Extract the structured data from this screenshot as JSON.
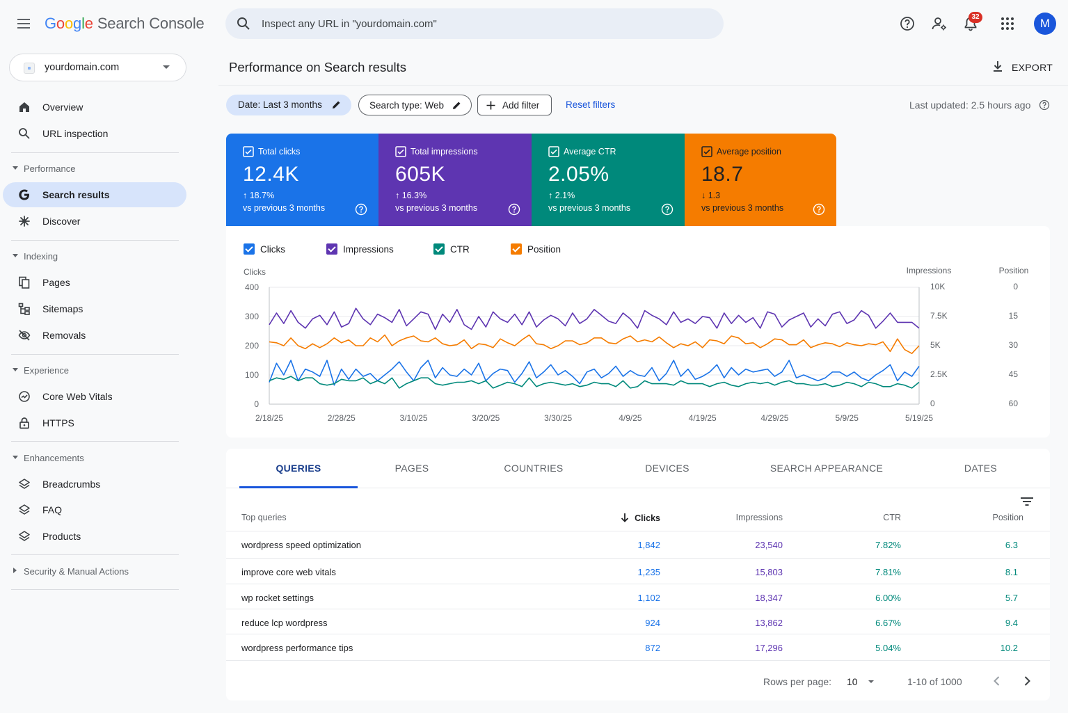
{
  "header": {
    "logo_letters": [
      "G",
      "o",
      "o",
      "g",
      "l",
      "e"
    ],
    "product": "Search Console",
    "search_placeholder": "Inspect any URL in \"yourdomain.com\"",
    "notification_count": "32",
    "avatar_letter": "M",
    "icons": [
      "menu-icon",
      "search-icon",
      "help-icon",
      "manage-users-icon",
      "bell-icon",
      "apps-icon"
    ]
  },
  "sidebar": {
    "property": "yourdomain.com",
    "overview": "Overview",
    "url_inspection": "URL inspection",
    "sections": {
      "performance": "Performance",
      "indexing": "Indexing",
      "experience": "Experience",
      "enhancements": "Enhancements",
      "security": "Security & Manual Actions"
    },
    "items": {
      "search_results": "Search results",
      "discover": "Discover",
      "pages": "Pages",
      "sitemaps": "Sitemaps",
      "removals": "Removals",
      "core_web_vitals": "Core Web Vitals",
      "https": "HTTPS",
      "breadcrumbs": "Breadcrumbs",
      "faq": "FAQ",
      "products": "Products"
    }
  },
  "main": {
    "title": "Performance on Search results",
    "export_label": "EXPORT",
    "filters": {
      "date": "Date: Last 3 months",
      "search_type": "Search type: Web",
      "add_filter": "Add filter",
      "reset": "Reset filters",
      "last_updated": "Last updated: 2.5 hours ago"
    },
    "cards": [
      {
        "label": "Total clicks",
        "value": "12.4K",
        "delta": "18.7%",
        "direction": "up",
        "compare": "vs previous 3 months",
        "color": "#1a73e8"
      },
      {
        "label": "Total impressions",
        "value": "605K",
        "delta": "16.3%",
        "direction": "up",
        "compare": "vs previous 3 months",
        "color": "#5e35b1"
      },
      {
        "label": "Average CTR",
        "value": "2.05%",
        "delta": "2.1%",
        "direction": "up",
        "compare": "vs previous 3 months",
        "color": "#00897b"
      },
      {
        "label": "Average position",
        "value": "18.7",
        "delta": "1.3",
        "direction": "down",
        "compare": "vs previous 3 months",
        "color": "#f57c00"
      }
    ],
    "legend": {
      "clicks": "Clicks",
      "impressions": "Impressions",
      "ctr": "CTR",
      "position": "Position"
    }
  },
  "chart_data": {
    "type": "line",
    "left_axis_title": "Clicks",
    "right_axis_titles": [
      "Impressions",
      "Position"
    ],
    "left_ticks": [
      "400",
      "300",
      "200",
      "100",
      "0"
    ],
    "impr_ticks": [
      "10K",
      "7.5K",
      "5K",
      "2.5K",
      "0"
    ],
    "pos_ticks": [
      "0",
      "15",
      "30",
      "45",
      "60"
    ],
    "x_ticks": [
      "2/18/25",
      "2/28/25",
      "3/10/25",
      "3/20/25",
      "3/30/25",
      "4/9/25",
      "4/19/25",
      "4/29/25",
      "5/9/25",
      "5/19/25"
    ],
    "ylim": [
      0,
      400
    ],
    "grid": true,
    "series": [
      {
        "name": "Impressions",
        "color": "#5e35b1",
        "axis": "impressions",
        "ylim": [
          0,
          10000
        ],
        "values": [
          6800,
          7800,
          6900,
          8000,
          7000,
          6500,
          7300,
          7600,
          6800,
          7900,
          6600,
          6900,
          8200,
          7300,
          6800,
          7700,
          7400,
          7000,
          8100,
          6700,
          7300,
          7900,
          7700,
          6400,
          7700,
          7000,
          8100,
          6800,
          6400,
          7500,
          6600,
          7900,
          7300,
          7000,
          7700,
          6800,
          7900,
          6600,
          7200,
          7600,
          7300,
          6700,
          7800,
          6900,
          7300,
          8100,
          7600,
          7100,
          6900,
          7800,
          7300,
          6500,
          8000,
          7600,
          7300,
          6800,
          7900,
          7000,
          7300,
          6900,
          7500,
          7400,
          6500,
          7800,
          6900,
          7600,
          7000,
          7400,
          6500,
          7900,
          7700,
          6600,
          7200,
          7500,
          7800,
          6600,
          7300,
          6700,
          7700,
          7900,
          6900,
          7200,
          8000,
          7600,
          6500,
          7100,
          7800,
          7000,
          7000,
          7000,
          6500
        ]
      },
      {
        "name": "Position",
        "color": "#f57c00",
        "axis": "position",
        "ylim": [
          60,
          0
        ],
        "values": [
          28,
          28.5,
          30,
          26,
          30,
          31.5,
          29,
          31,
          29,
          26,
          28.5,
          27,
          30,
          30,
          26,
          28,
          24.5,
          30,
          27.5,
          26,
          25,
          27.5,
          28,
          26,
          29,
          30,
          29.5,
          27,
          31.5,
          29,
          29.5,
          31,
          26.5,
          28.5,
          30,
          27,
          24.5,
          29,
          29.5,
          31.5,
          30,
          27.5,
          27.5,
          29.5,
          28.5,
          26,
          26,
          28.5,
          29,
          26.5,
          25,
          28,
          27,
          28,
          25.5,
          28.5,
          31,
          29,
          30,
          28,
          31,
          27,
          27.5,
          29,
          25,
          26,
          29,
          28.5,
          31,
          29,
          26.5,
          27,
          29.5,
          29.5,
          27,
          31,
          29.5,
          28.5,
          29,
          30.5,
          28.5,
          29.5,
          30,
          29,
          29.5,
          28,
          33,
          26.5,
          32,
          34,
          30
        ]
      },
      {
        "name": "Clicks",
        "color": "#1a73e8",
        "axis": "clicks",
        "ylim": [
          0,
          400
        ],
        "values": [
          75,
          140,
          100,
          150,
          80,
          120,
          110,
          95,
          150,
          65,
          120,
          85,
          120,
          95,
          105,
          80,
          100,
          120,
          145,
          110,
          80,
          125,
          150,
          90,
          125,
          100,
          95,
          120,
          100,
          140,
          80,
          105,
          120,
          115,
          75,
          105,
          145,
          90,
          110,
          135,
          100,
          115,
          95,
          70,
          110,
          120,
          90,
          105,
          130,
          95,
          115,
          100,
          95,
          125,
          80,
          105,
          150,
          95,
          120,
          85,
          95,
          110,
          135,
          90,
          125,
          100,
          120,
          110,
          115,
          120,
          95,
          110,
          150,
          90,
          100,
          90,
          80,
          90,
          110,
          110,
          95,
          110,
          90,
          80,
          100,
          115,
          135,
          80,
          110,
          95,
          130
        ]
      },
      {
        "name": "CTR",
        "color": "#00897b",
        "values": [
          80,
          90,
          85,
          95,
          80,
          90,
          90,
          70,
          65,
          70,
          85,
          80,
          80,
          90,
          70,
          80,
          70,
          90,
          55,
          70,
          80,
          90,
          90,
          70,
          65,
          70,
          75,
          75,
          80,
          70,
          80,
          55,
          65,
          75,
          70,
          60,
          90,
          60,
          70,
          75,
          70,
          65,
          70,
          60,
          65,
          75,
          70,
          70,
          60,
          80,
          55,
          60,
          80,
          70,
          70,
          70,
          65,
          80,
          70,
          70,
          70,
          60,
          70,
          75,
          65,
          60,
          70,
          75,
          70,
          75,
          65,
          75,
          80,
          70,
          70,
          65,
          65,
          70,
          60,
          65,
          75,
          70,
          60,
          75,
          70,
          60,
          60,
          70,
          65,
          55,
          75
        ]
      }
    ]
  },
  "table": {
    "tabs": [
      "QUERIES",
      "PAGES",
      "COUNTRIES",
      "DEVICES",
      "SEARCH APPEARANCE",
      "DATES"
    ],
    "columns": {
      "query": "Top queries",
      "clicks": "Clicks",
      "impressions": "Impressions",
      "ctr": "CTR",
      "position": "Position"
    },
    "rows": [
      {
        "query": "wordpress speed optimization",
        "clicks": "1,842",
        "impressions": "23,540",
        "ctr": "7.82%",
        "position": "6.3"
      },
      {
        "query": "improve core web vitals",
        "clicks": "1,235",
        "impressions": "15,803",
        "ctr": "7.81%",
        "position": "8.1"
      },
      {
        "query": "wp rocket settings",
        "clicks": "1,102",
        "impressions": "18,347",
        "ctr": "6.00%",
        "position": "5.7"
      },
      {
        "query": "reduce lcp wordpress",
        "clicks": "924",
        "impressions": "13,862",
        "ctr": "6.67%",
        "position": "9.4"
      },
      {
        "query": "wordpress performance tips",
        "clicks": "872",
        "impressions": "17,296",
        "ctr": "5.04%",
        "position": "10.2"
      }
    ],
    "pagination": {
      "rows_per_page_label": "Rows per page:",
      "rows_per_page": "10",
      "range": "1-10 of 1000"
    }
  }
}
